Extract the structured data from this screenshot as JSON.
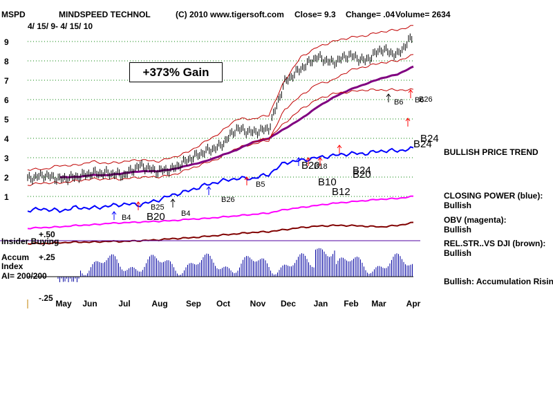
{
  "header": {
    "ticker": "MSPD",
    "company": "MINDSPEED TECHNOL",
    "copyright": "(C) 2010 www.tigersoft.com",
    "close": "Close=  9.3",
    "change": "Change= .04",
    "volume": "Volume= 2634",
    "date_range": "4/ 15/ 9- 4/ 15/ 10"
  },
  "gain_box": "+373% Gain",
  "right_labels": {
    "price_trend": "BULLISH PRICE TREND",
    "closing_power": "CLOSING POWER (blue):",
    "closing_power_val": "Bullish",
    "obv": "OBV (magenta):",
    "obv_val": "Bullish",
    "relstr": "REL.STR..VS DJI (brown):",
    "relstr_val": "Bullish",
    "accum": "Bullish: Accumulation Rising"
  },
  "lower_panel": {
    "insider": "Insider Buying",
    "accum1": "Accum",
    "accum2": "Index",
    "ai": "AI= 200/200",
    "p50": "+.50",
    "p25": "+.25",
    "m25": "-.25"
  },
  "colors": {
    "price_bars": "#000000",
    "bands": "#c00000",
    "ma": "#800080",
    "closing_power": "#0000ff",
    "obv": "#ff00ff",
    "relstr": "#800000",
    "accum": "#0000a0",
    "grid": "#008000",
    "signals": "#ff0000"
  },
  "chart_data": {
    "type": "line",
    "title": "MSPD  MINDSPEED TECHNOL",
    "x_ticks": [
      "May",
      "Jun",
      "Jul",
      "Aug",
      "Sep",
      "Oct",
      "Nov",
      "Dec",
      "Jan",
      "Feb",
      "Mar",
      "Apr"
    ],
    "y_ticks": [
      "9",
      "8",
      "7",
      "6",
      "5",
      "4",
      "3",
      "2",
      "1"
    ],
    "ylim": [
      0.5,
      9.5
    ],
    "x": [
      0,
      0.5,
      1,
      1.5,
      2,
      2.5,
      3,
      3.5,
      4,
      4.5,
      5,
      5.5,
      6,
      6.5,
      7,
      7.5,
      8,
      8.5,
      9,
      9.5,
      10,
      10.5,
      11,
      11.5,
      12
    ],
    "series": [
      {
        "name": "Price",
        "values": [
          1.9,
          2.1,
          1.9,
          2.0,
          2.2,
          2.2,
          2.1,
          2.6,
          2.3,
          2.4,
          2.9,
          3.3,
          3.6,
          4.5,
          4.3,
          4.5,
          6.9,
          7.6,
          8.2,
          7.9,
          8.3,
          8.0,
          8.6,
          8.3,
          9.3
        ]
      },
      {
        "name": "Upper band",
        "values": [
          2.4,
          2.4,
          2.6,
          2.6,
          2.8,
          2.7,
          2.8,
          2.9,
          2.8,
          3.0,
          3.3,
          3.8,
          4.3,
          5.0,
          5.0,
          5.2,
          7.0,
          8.2,
          8.7,
          9.0,
          9.2,
          9.3,
          9.5,
          9.6,
          9.8
        ]
      },
      {
        "name": "Lower band",
        "values": [
          1.6,
          1.7,
          1.7,
          1.8,
          1.9,
          1.9,
          1.9,
          2.0,
          2.0,
          2.1,
          2.4,
          2.7,
          3.0,
          3.5,
          3.7,
          3.9,
          5.5,
          6.2,
          6.8,
          7.0,
          7.5,
          7.7,
          7.9,
          8.0,
          8.3
        ]
      },
      {
        "name": "Moving average",
        "values": [
          null,
          null,
          2.0,
          2.0,
          2.1,
          2.1,
          2.2,
          2.3,
          2.3,
          2.4,
          2.6,
          2.8,
          3.1,
          3.4,
          3.8,
          4.0,
          4.5,
          5.0,
          5.6,
          6.1,
          6.5,
          6.8,
          7.1,
          7.3,
          7.7
        ]
      },
      {
        "name": "Lower envelope",
        "values": [
          null,
          null,
          null,
          null,
          null,
          null,
          null,
          null,
          null,
          null,
          null,
          null,
          null,
          null,
          3.8,
          4.0,
          4.8,
          5.5,
          6.0,
          6.3,
          6.4,
          6.5,
          6.5,
          6.5,
          6.5
        ]
      }
    ],
    "signals": [
      "B4",
      "B20",
      "B25",
      "B4",
      "B26",
      "B5",
      "B20",
      "B18",
      "B10",
      "B12",
      "B24",
      "B20",
      "B6",
      "B6",
      "B26",
      "B24"
    ]
  }
}
